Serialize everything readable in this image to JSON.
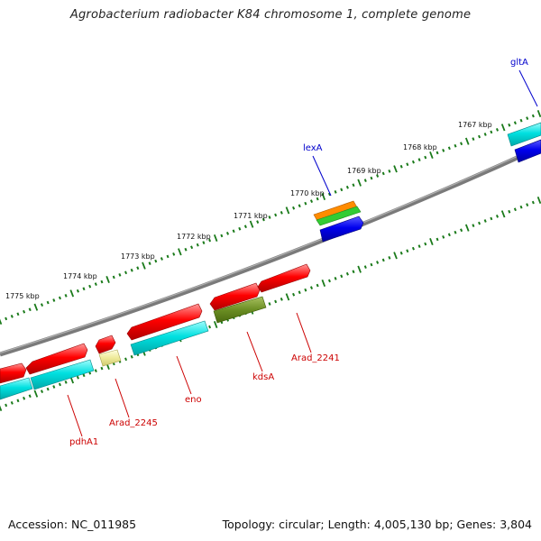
{
  "title": "Agrobacterium radiobacter K84 chromosome 1, complete genome",
  "footer": {
    "accession": "Accession: NC_011985",
    "summary": "Topology: circular; Length: 4,005,130 bp; Genes: 3,804"
  },
  "ticks": [
    "1775 kbp",
    "1774 kbp",
    "1773 kbp",
    "1772 kbp",
    "1771 kbp",
    "1770 kbp",
    "1769 kbp",
    "1768 kbp",
    "1767 kbp"
  ],
  "genes": [
    {
      "name": "gltA",
      "color": "#0000cc"
    },
    {
      "name": "lexA",
      "color": "#0000cc"
    },
    {
      "name": "Arad_2241",
      "color": "#cc0000"
    },
    {
      "name": "kdsA",
      "color": "#cc0000"
    },
    {
      "name": "eno",
      "color": "#cc0000"
    },
    {
      "name": "Arad_2245",
      "color": "#cc0000"
    },
    {
      "name": "pdhA1",
      "color": "#cc0000"
    }
  ],
  "colors": {
    "backbone": "#808080",
    "tick": "#1a7a1a",
    "red": "#ff0000",
    "cyan": "#00dede",
    "blue": "#0000ee",
    "olive": "#6b8e23",
    "orange": "#ff8c00",
    "green": "#33cc33",
    "khaki": "#eeea99"
  }
}
